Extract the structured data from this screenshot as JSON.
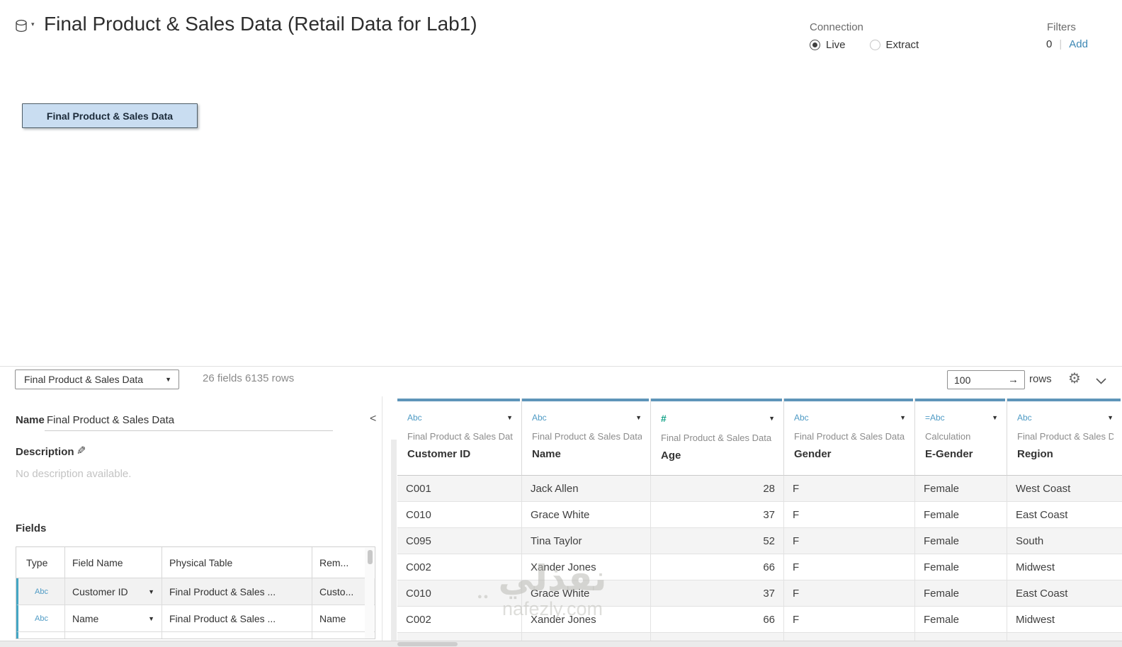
{
  "header": {
    "title": "Final Product & Sales Data (Retail Data for Lab1)",
    "connection": {
      "label": "Connection",
      "options": [
        {
          "label": "Live",
          "selected": true
        },
        {
          "label": "Extract",
          "selected": false
        }
      ]
    },
    "filters": {
      "label": "Filters",
      "count": "0",
      "add_label": "Add"
    }
  },
  "canvas": {
    "table_node_label": "Final Product & Sales Data"
  },
  "toolbar": {
    "table_selector_value": "Final Product & Sales Data",
    "summary": "26 fields 6135 rows",
    "row_limit_value": "100",
    "rows_label": "rows"
  },
  "metadata_panel": {
    "name_label": "Name",
    "name_value": "Final Product & Sales Data",
    "description_label": "Description",
    "description_placeholder": "No description available.",
    "fields_label": "Fields",
    "fields_table": {
      "columns": [
        "Type",
        "Field Name",
        "Physical Table",
        "Rem..."
      ],
      "rows": [
        {
          "type": "Abc",
          "field_name": "Customer ID",
          "physical_table": "Final Product & Sales ...",
          "remote_field": "Custo..."
        },
        {
          "type": "Abc",
          "field_name": "Name",
          "physical_table": "Final Product & Sales ...",
          "remote_field": "Name"
        }
      ]
    }
  },
  "data_grid": {
    "columns": [
      {
        "type_icon": "Abc",
        "source": "Final Product & Sales Data",
        "name": "Customer ID",
        "align": "left"
      },
      {
        "type_icon": "Abc",
        "source": "Final Product & Sales Data",
        "name": "Name",
        "align": "left"
      },
      {
        "type_icon": "#",
        "source": "Final Product & Sales Data",
        "name": "Age",
        "align": "right"
      },
      {
        "type_icon": "Abc",
        "source": "Final Product & Sales Data",
        "name": "Gender",
        "align": "left"
      },
      {
        "type_icon": "=Abc",
        "source": "Calculation",
        "name": "E-Gender",
        "align": "left"
      },
      {
        "type_icon": "Abc",
        "source": "Final Product & Sales Data",
        "name": "Region",
        "align": "left"
      }
    ],
    "rows": [
      [
        "C001",
        "Jack Allen",
        "28",
        "F",
        "Female",
        "West Coast"
      ],
      [
        "C010",
        "Grace White",
        "37",
        "F",
        "Female",
        "East Coast"
      ],
      [
        "C095",
        "Tina Taylor",
        "52",
        "F",
        "Female",
        "South"
      ],
      [
        "C002",
        "Xander Jones",
        "66",
        "F",
        "Female",
        "Midwest"
      ],
      [
        "C010",
        "Grace White",
        "37",
        "F",
        "Female",
        "East Coast"
      ],
      [
        "C002",
        "Xander Jones",
        "66",
        "F",
        "Female",
        "Midwest"
      ]
    ]
  },
  "watermark": {
    "arabic_text": "نفذلي",
    "dots": "●●",
    "domain_text": "nafezly.com"
  },
  "icons": {
    "gear": "⚙",
    "pencil": "✎",
    "caret_down": "▼",
    "arrow_right": "→",
    "collapse_left": "<",
    "db_caret": "▾"
  },
  "colors": {
    "type_blue": "#4f9bc5",
    "number_green": "#12a287",
    "header_bar_blue": "#5e95b9",
    "add_link_blue": "#3c87b4",
    "node_fill": "#c9ddf1",
    "node_border": "#4e5c66",
    "row_alt": "#f4f4f4",
    "accent_teal": "#44a6c4"
  }
}
